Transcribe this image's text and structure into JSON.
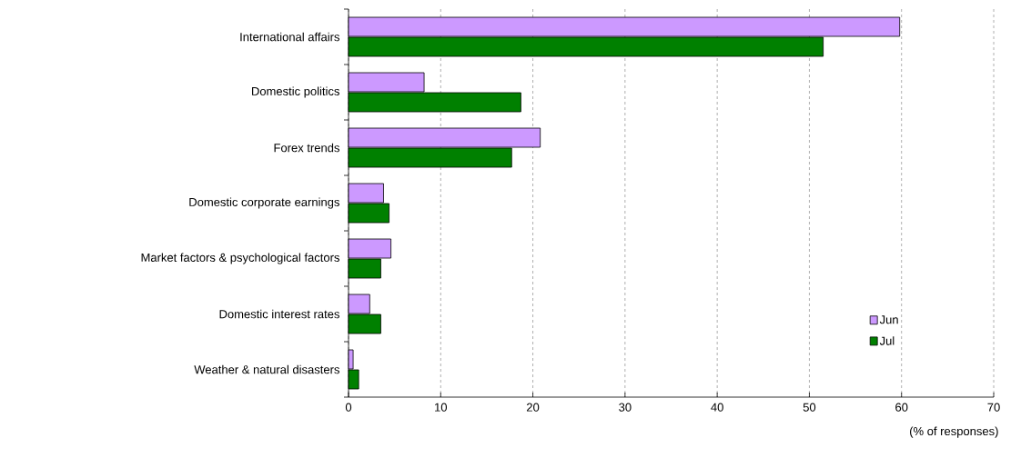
{
  "chart_data": {
    "type": "bar",
    "orientation": "horizontal",
    "categories": [
      "International affairs",
      "Domestic politics",
      "Forex trends",
      "Domestic corporate earnings",
      "Market factors & psychological factors",
      "Domestic interest rates",
      "Weather & natural disasters"
    ],
    "series": [
      {
        "name": "Jun",
        "color": "#cc99ff",
        "values": [
          59.8,
          8.2,
          20.8,
          3.8,
          4.6,
          2.3,
          0.5
        ]
      },
      {
        "name": "Jul",
        "color": "#008000",
        "values": [
          51.5,
          18.7,
          17.7,
          4.4,
          3.5,
          3.5,
          1.1
        ]
      }
    ],
    "xlabel": "(% of responses)",
    "xlim": [
      0,
      70
    ],
    "xticks": [
      0,
      10,
      20,
      30,
      40,
      50,
      60,
      70
    ],
    "grid": "x",
    "legend": "bottom right"
  }
}
